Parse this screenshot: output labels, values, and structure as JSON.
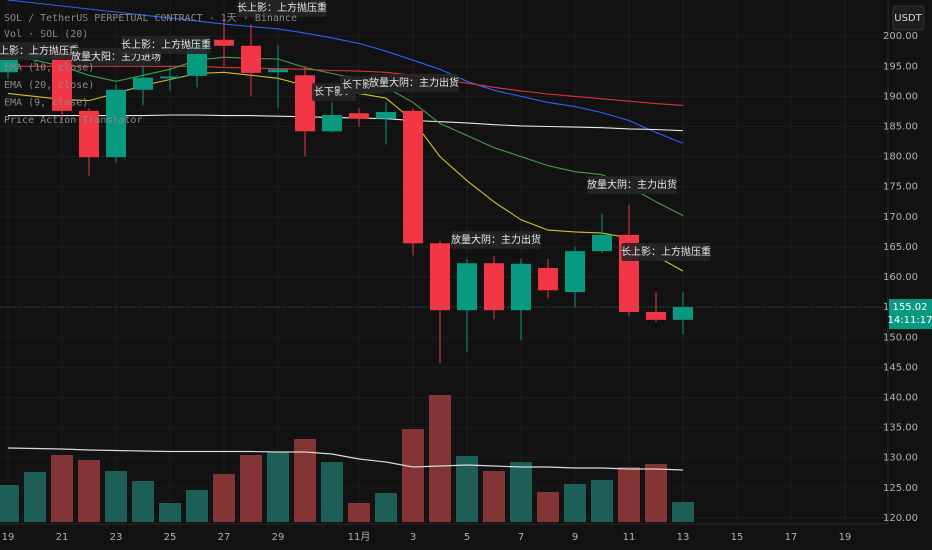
{
  "chart_data": {
    "type": "candlestick",
    "title": "SOL / TetherUS PERPETUAL CONTRACT · 1天 · Binance",
    "indicators": [
      "Vol · SOL (20)",
      "EMA (10, close)",
      "EMA (20, close)",
      "EMA (9, close)",
      "Price Action Translator"
    ],
    "currency": "USDT",
    "last_price": 155.02,
    "countdown": "14:11:17",
    "categories": [
      "19",
      null,
      "21",
      null,
      "23",
      null,
      "25",
      null,
      "27",
      null,
      "29",
      null,
      null,
      "11月",
      null,
      "3",
      null,
      "5",
      null,
      "7",
      null,
      "9",
      null,
      "11",
      null,
      "13",
      null,
      "15",
      null,
      "17",
      null,
      "19"
    ],
    "open": [
      194,
      196.5,
      197,
      187.6,
      179.9,
      191.1,
      193,
      193.4,
      199.4,
      198.4,
      194,
      193.5,
      184.2,
      187.2,
      186.3,
      187.6,
      165.6,
      154.5,
      162.3,
      154.5,
      161.5,
      157.5,
      164.3,
      167,
      154.2,
      152.9,
      null,
      null,
      null,
      null,
      null,
      null
    ],
    "high": [
      198,
      199,
      198,
      188,
      192,
      196.5,
      195,
      200,
      203.5,
      202,
      198.5,
      195,
      189,
      188,
      189,
      188,
      166,
      163,
      163.5,
      163,
      163,
      165,
      170.5,
      172,
      157.5,
      157.5,
      null,
      null,
      null,
      null,
      null,
      null
    ],
    "low": [
      193,
      195,
      186,
      176.8,
      179,
      188.5,
      191,
      191.5,
      195,
      190,
      188,
      180,
      184,
      185,
      182,
      163.6,
      145.7,
      147.5,
      153,
      149.5,
      156.5,
      155,
      164,
      153.5,
      152.5,
      150.5,
      null,
      null,
      null,
      null,
      null,
      null
    ],
    "close": [
      196.5,
      197.2,
      187.6,
      179.9,
      191.1,
      193.1,
      193.3,
      199.4,
      198.4,
      193.9,
      194.5,
      184.2,
      186.9,
      186.3,
      187.4,
      165.6,
      154.5,
      162.3,
      154.5,
      162.2,
      157.8,
      164.3,
      167,
      154.2,
      152.9,
      155.02,
      null,
      null,
      null,
      null,
      null,
      null
    ],
    "volume": [
      37,
      50,
      67,
      62,
      51,
      41,
      19,
      32,
      48,
      67,
      70,
      83,
      60,
      19,
      29,
      93,
      127,
      66,
      51,
      60,
      30,
      38,
      42,
      55,
      58,
      20,
      null,
      null,
      null,
      null,
      null,
      null
    ],
    "volume_ma": [
      74,
      73.5,
      73,
      72,
      71.5,
      71,
      70.5,
      70.5,
      70.5,
      70.5,
      70,
      70,
      68,
      63,
      60,
      55,
      56,
      57,
      56,
      55,
      55,
      54,
      54,
      53,
      53,
      52,
      null,
      null,
      null,
      null,
      null,
      null
    ],
    "volume_ylim": [
      0,
      130
    ],
    "volume_colors": {
      "up": "#1d5f57",
      "down": "#833535"
    },
    "up_color": "#089981",
    "down_color": "#f23645",
    "series": [
      {
        "color": "#2962ff",
        "values": [
          206,
          205.5,
          205,
          204.5,
          204,
          203.5,
          203,
          202.5,
          202,
          201.6,
          201.2,
          200.5,
          199.7,
          198.8,
          197.5,
          196,
          194.5,
          192.5,
          191,
          190,
          189,
          188.3,
          187.3,
          186,
          184,
          182.2,
          null,
          null,
          null,
          null,
          null,
          null
        ]
      },
      {
        "color": "#e0323a",
        "values": [
          195,
          195,
          195,
          195,
          195,
          195,
          195,
          195,
          194.8,
          194.7,
          194.6,
          194.5,
          194.3,
          194.2,
          194,
          193.5,
          192.8,
          192.2,
          191.5,
          190.9,
          190.4,
          190,
          189.6,
          189.2,
          188.8,
          188.5,
          null,
          null,
          null,
          null,
          null,
          null
        ]
      },
      {
        "color": "#e8e8e8",
        "values": [
          186.8,
          186.8,
          186.8,
          186.8,
          186.8,
          186.8,
          186.9,
          186.9,
          186.8,
          186.8,
          186.7,
          186.6,
          186.5,
          186.4,
          186.3,
          186,
          185.8,
          185.6,
          185.3,
          185.1,
          185,
          184.9,
          184.8,
          184.6,
          184.5,
          184.3,
          null,
          null,
          null,
          null,
          null,
          null
        ]
      },
      {
        "color": "#43a047",
        "values": [
          197,
          196,
          195,
          193.5,
          192.5,
          193.5,
          194.5,
          196,
          196.5,
          196.3,
          196.2,
          194.8,
          193.8,
          192.8,
          191.5,
          189,
          185.5,
          183.5,
          181.5,
          180,
          178.5,
          177.5,
          177,
          175,
          172.5,
          170.2,
          null,
          null,
          null,
          null,
          null,
          null
        ]
      },
      {
        "color": "#d4c227",
        "values": [
          190.5,
          190,
          189.5,
          189.3,
          190.5,
          191.8,
          192.8,
          193.8,
          194,
          193.5,
          193,
          191.8,
          191.3,
          190.5,
          189.7,
          186,
          180,
          176,
          172.5,
          169.5,
          167.8,
          167.5,
          167.3,
          166.5,
          163.5,
          161,
          null,
          null,
          null,
          null,
          null,
          null
        ]
      }
    ],
    "annotations": [
      {
        "text": "长上影：上方抛压重"
      },
      {
        "text": "放量大阳：主力进场"
      },
      {
        "text": "长上影：上方抛压重"
      },
      {
        "text": "长上影：上方抛压重"
      },
      {
        "text": "长下影："
      },
      {
        "text": "长下影："
      },
      {
        "text": "放量大阴：主力出货"
      },
      {
        "text": "放量大阴：主力出货"
      },
      {
        "text": "放量大阴：主力出货"
      },
      {
        "text": "长上影：上方抛压重"
      }
    ],
    "ylim": [
      119,
      206
    ],
    "yticks": [
      {
        "value": 120,
        "label": "120.00"
      },
      {
        "value": 125,
        "label": "125.00"
      },
      {
        "value": 130,
        "label": "130.00"
      },
      {
        "value": 135,
        "label": "135.00"
      },
      {
        "value": 140,
        "label": "140.00"
      },
      {
        "value": 145,
        "label": "145.00"
      },
      {
        "value": 150,
        "label": "150.00"
      },
      {
        "value": 155,
        "label": "155.00"
      },
      {
        "value": 160,
        "label": "160.00"
      },
      {
        "value": 165,
        "label": "165.00"
      },
      {
        "value": 170,
        "label": "170.00"
      },
      {
        "value": 175,
        "label": "175.00"
      },
      {
        "value": 180,
        "label": "180.00"
      },
      {
        "value": 185,
        "label": "185.00"
      },
      {
        "value": 190,
        "label": "190.00"
      },
      {
        "value": 195,
        "label": "195.00"
      },
      {
        "value": 200,
        "label": "200.00"
      }
    ],
    "grid": true
  }
}
